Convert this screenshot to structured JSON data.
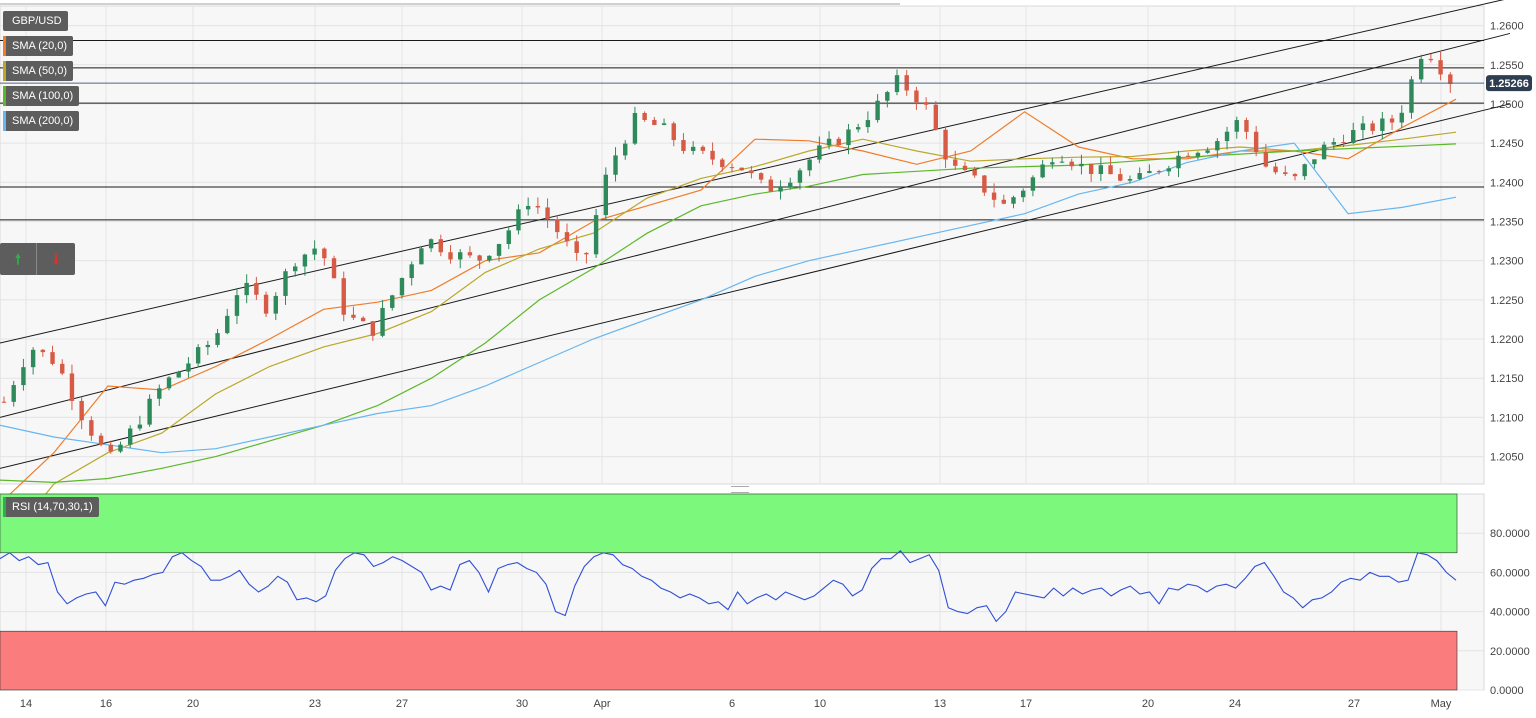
{
  "symbol": "GBP/USD",
  "indicators": [
    {
      "label": "SMA (20,0)",
      "color": "#f07c2a"
    },
    {
      "label": "SMA (50,0)",
      "color": "#b9a82a"
    },
    {
      "label": "SMA (100,0)",
      "color": "#5cb82a"
    },
    {
      "label": "SMA (200,0)",
      "color": "#67b6f0"
    }
  ],
  "trade_buttons": {
    "up_icon": "up-arrow-icon",
    "down_icon": "down-arrow-icon",
    "up_glyph": "🠕",
    "down_glyph": "🠗"
  },
  "last_price_label": "1.25266",
  "rsi_label": "RSI (14,70,30,1)",
  "colors": {
    "up": "#2e8a5a",
    "down": "#d65a44",
    "rsi_line": "#2f4fd6",
    "overbought_zone": "#7cf97c",
    "oversold_zone": "#fb7c7c",
    "price_tag": "#2c3e50"
  },
  "chart_data": [
    {
      "type": "candlestick",
      "title": "GBP/USD",
      "ylim": [
        1.2015,
        1.2625
      ],
      "y_ticks": [
        "1.2050",
        "1.2100",
        "1.2150",
        "1.2200",
        "1.2250",
        "1.2300",
        "1.2350",
        "1.2400",
        "1.2450",
        "1.2500",
        "1.2550",
        "1.2600"
      ],
      "x_ticks": [
        "14",
        "16",
        "20",
        "23",
        "27",
        "30",
        "Apr",
        "6",
        "10",
        "13",
        "17",
        "20",
        "24",
        "27",
        "May"
      ],
      "last_price": 1.25266,
      "horizontal_levels": [
        1.2581,
        1.2546,
        1.2501,
        1.2394,
        1.2352
      ],
      "channel_lines": [
        {
          "from": [
            0,
            1.2195
          ],
          "to": [
            1510,
            1.2635
          ]
        },
        {
          "from": [
            0,
            1.21
          ],
          "to": [
            1510,
            1.259
          ]
        },
        {
          "from": [
            0,
            1.2035
          ],
          "to": [
            1510,
            1.25
          ]
        }
      ],
      "sma": {
        "SMA (20,0)": [
          1.199,
          1.2055,
          1.214,
          1.2135,
          1.2165,
          1.22,
          1.2238,
          1.2247,
          1.2262,
          1.23,
          1.231,
          1.235,
          1.237,
          1.239,
          1.2455,
          1.2453,
          1.244,
          1.2423,
          1.244,
          1.249,
          1.2445,
          1.243,
          1.243,
          1.244,
          1.244,
          1.243,
          1.247,
          1.2506
        ],
        "SMA (50,0)": [
          1.193,
          1.2015,
          1.2055,
          1.208,
          1.213,
          1.2165,
          1.219,
          1.2207,
          1.2235,
          1.2285,
          1.2315,
          1.2335,
          1.238,
          1.2405,
          1.242,
          1.244,
          1.2455,
          1.244,
          1.2427,
          1.243,
          1.2432,
          1.2433,
          1.244,
          1.2445,
          1.244,
          1.2447,
          1.2455,
          1.2464
        ],
        "SMA (100,0)": [
          1.202,
          1.2017,
          1.2022,
          1.2035,
          1.205,
          1.207,
          1.209,
          1.2115,
          1.215,
          1.2195,
          1.225,
          1.229,
          1.2335,
          1.237,
          1.2385,
          1.2395,
          1.241,
          1.2414,
          1.2418,
          1.242,
          1.2422,
          1.2427,
          1.2432,
          1.2436,
          1.244,
          1.2443,
          1.2446,
          1.2449
        ],
        "SMA (200,0)": [
          1.209,
          1.2075,
          1.2065,
          1.2055,
          1.206,
          1.2075,
          1.209,
          1.2105,
          1.2115,
          1.214,
          1.217,
          1.22,
          1.2225,
          1.225,
          1.228,
          1.23,
          1.2315,
          1.233,
          1.2345,
          1.236,
          1.2385,
          1.24,
          1.2425,
          1.244,
          1.245,
          1.236,
          1.2368,
          1.2381
        ]
      }
    },
    {
      "type": "line",
      "title": "RSI (14,70,30,1)",
      "ylim": [
        0,
        100
      ],
      "y_ticks": [
        "0.0000",
        "20.0000",
        "40.0000",
        "60.0000",
        "80.0000"
      ],
      "overbought": 70,
      "oversold": 30,
      "values": [
        67,
        70,
        66,
        68,
        64,
        65,
        50,
        44,
        47,
        49,
        50,
        43,
        55,
        54,
        56,
        57,
        59,
        60,
        68,
        70,
        66,
        63,
        56,
        56,
        58,
        61,
        54,
        50,
        53,
        58,
        55,
        46,
        47,
        45,
        48,
        61,
        67,
        70,
        69,
        63,
        65,
        68,
        66,
        63,
        60,
        51,
        53,
        51,
        64,
        66,
        60,
        50,
        62,
        64,
        65,
        62,
        60,
        54,
        40,
        38,
        53,
        63,
        68,
        70,
        69,
        64,
        62,
        58,
        56,
        52,
        50,
        47,
        49,
        47,
        44,
        45,
        41,
        50,
        44,
        47,
        49,
        46,
        50,
        48,
        46,
        48,
        52,
        56,
        54,
        48,
        51,
        62,
        67,
        67,
        71,
        65,
        67,
        69,
        61,
        42,
        40,
        39,
        42,
        43,
        35,
        40,
        50,
        49,
        48,
        47,
        52,
        48,
        52,
        49,
        51,
        52,
        48,
        51,
        53,
        49,
        50,
        44,
        52,
        51,
        54,
        53,
        50,
        53,
        54,
        52,
        57,
        63,
        65,
        58,
        50,
        47,
        42,
        46,
        47,
        50,
        55,
        57,
        56,
        60,
        58,
        58,
        55,
        56,
        70,
        69,
        66,
        60,
        56
      ]
    }
  ]
}
